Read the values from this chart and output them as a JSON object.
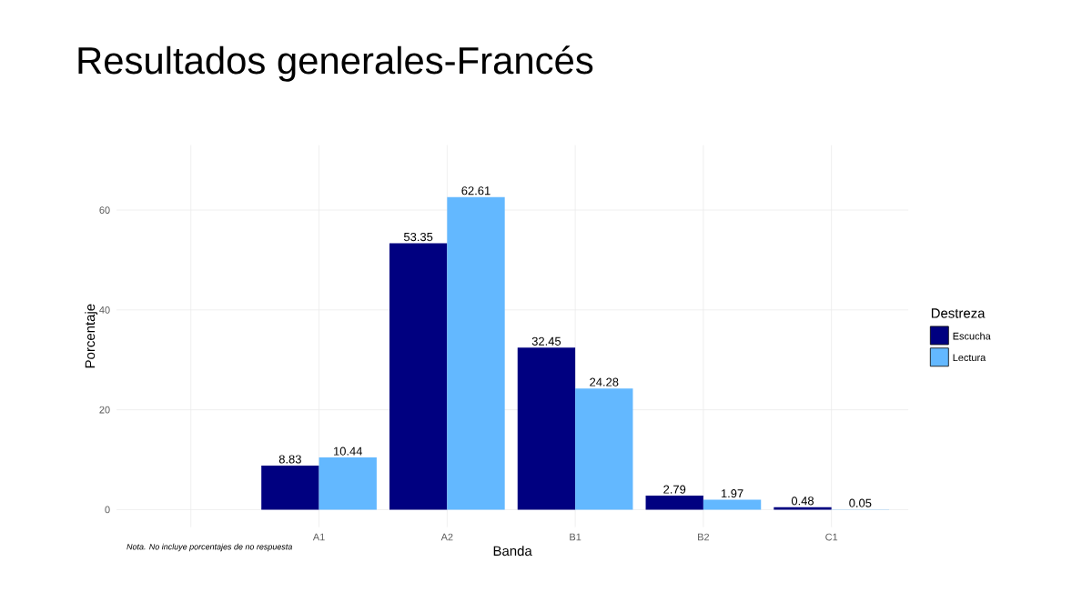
{
  "chart_data": {
    "type": "bar",
    "title": "Resultados generales-Francés",
    "xlabel": "Banda",
    "ylabel": "Porcentaje",
    "legend_title": "Destreza",
    "categories": [
      null,
      "A1",
      "A2",
      "B1",
      "B2",
      "C1"
    ],
    "series": [
      {
        "name": "Escucha",
        "color": "#000080",
        "values": [
          null,
          8.83,
          53.35,
          32.45,
          2.79,
          0.48
        ]
      },
      {
        "name": "Lectura",
        "color": "#63b8ff",
        "values": [
          null,
          10.44,
          62.61,
          24.28,
          1.97,
          0.05
        ]
      }
    ],
    "ylim": [
      -3.5,
      73
    ],
    "yticks": [
      0,
      20,
      40,
      60
    ],
    "grid": true,
    "legend": "right",
    "data_labels": true,
    "annotations": [
      "Nota. No incluye porcentajes de no respuesta"
    ]
  }
}
